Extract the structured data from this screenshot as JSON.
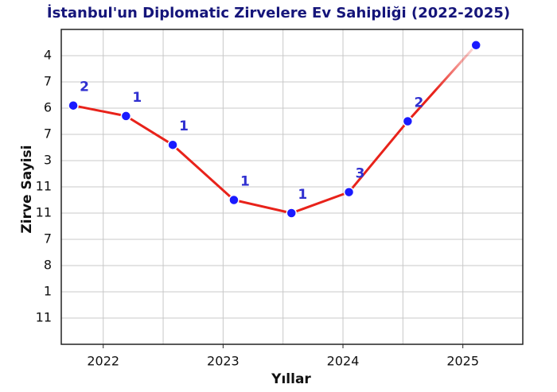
{
  "chart_data": {
    "type": "line",
    "title": "İstanbul'un Diplomatic Zirvelere Ev Sahipliği (2022-2025)",
    "xlabel": "Yıllar",
    "ylabel": "Zirve Sayisi",
    "x": [
      2021.75,
      2022.19,
      2022.58,
      2023.09,
      2023.57,
      2024.05,
      2024.54,
      2025.11
    ],
    "series": [
      {
        "color": "#e8221a",
        "marker_color": "#1a1aff",
        "values": [
          9.1,
          8.7,
          7.6,
          5.5,
          5.0,
          5.8,
          8.5,
          11.4
        ]
      }
    ],
    "annotations": [
      "2",
      "1",
      "1",
      "1",
      "1",
      "3",
      "2",
      null
    ],
    "xlim": [
      2021.65,
      2025.5
    ],
    "xticks": [
      2022,
      2023,
      2024,
      2025
    ],
    "ylim": [
      0,
      12
    ],
    "yticks": [
      {
        "value": 1,
        "label": "11"
      },
      {
        "value": 2,
        "label": "1"
      },
      {
        "value": 3,
        "label": "8"
      },
      {
        "value": 4,
        "label": "7"
      },
      {
        "value": 5,
        "label": "11"
      },
      {
        "value": 6,
        "label": "11"
      },
      {
        "value": 7,
        "label": "3"
      },
      {
        "value": 8,
        "label": "7"
      },
      {
        "value": 9,
        "label": "6"
      },
      {
        "value": 10,
        "label": "7"
      },
      {
        "value": 11,
        "label": "4"
      }
    ],
    "grid": true
  }
}
